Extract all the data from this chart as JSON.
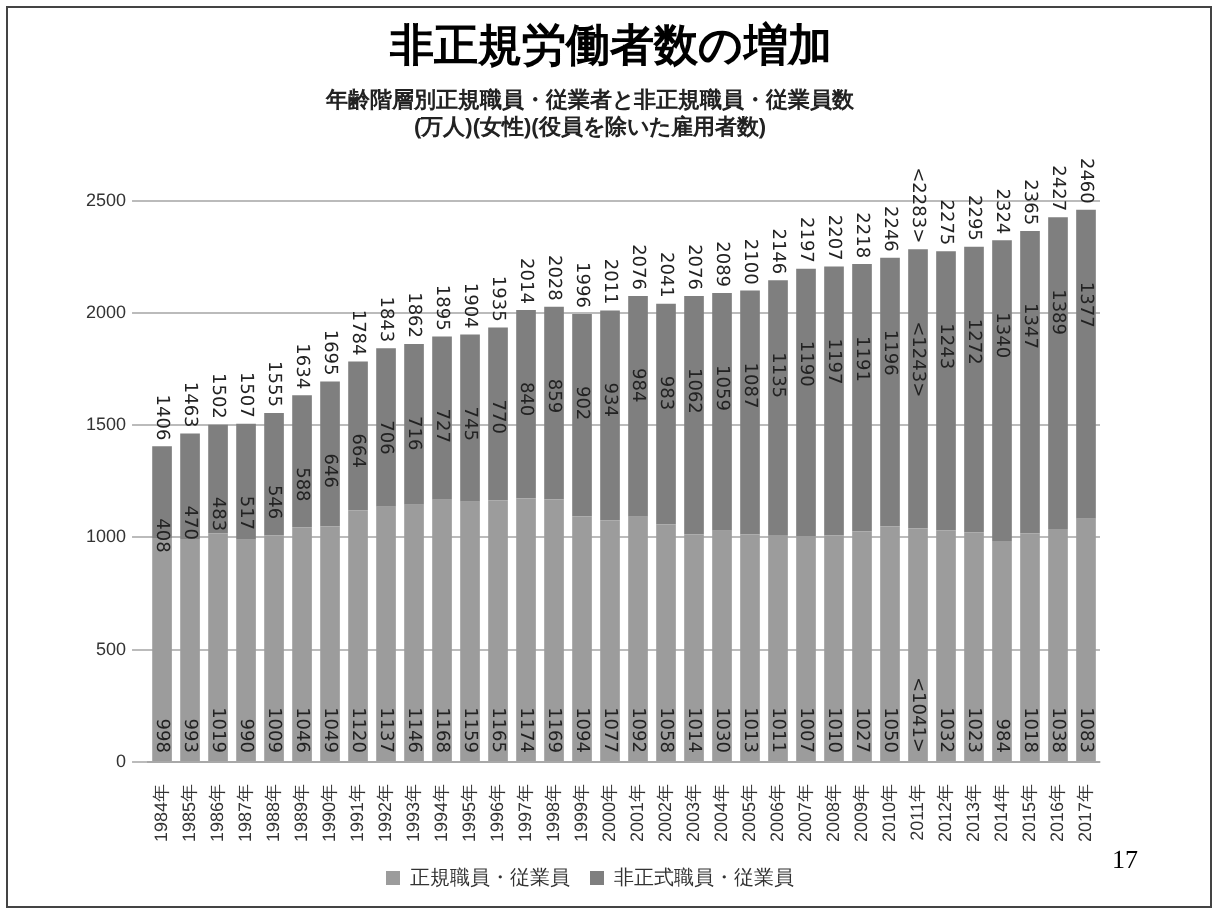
{
  "chart_data": {
    "type": "bar",
    "title": "非正規労働者数の増加",
    "subtitle": "年齢階層別正規職員・従業者と非正規職員・従業員数\n(万人)(女性)(役員を除いた雇用者数)",
    "categories": [
      "1984年",
      "1985年",
      "1986年",
      "1987年",
      "1988年",
      "1989年",
      "1990年",
      "1991年",
      "1992年",
      "1993年",
      "1994年",
      "1995年",
      "1996年",
      "1997年",
      "1998年",
      "1999年",
      "2000年",
      "2001年",
      "2002年",
      "2003年",
      "2004年",
      "2005年",
      "2006年",
      "2007年",
      "2008年",
      "2009年",
      "2010年",
      "2011年",
      "2012年",
      "2013年",
      "2014年",
      "2015年",
      "2016年",
      "2017年"
    ],
    "stacked": true,
    "series": [
      {
        "name": "正規職員・従業員",
        "color": "#9c9c9c",
        "values": [
          998,
          993,
          1019,
          990,
          1009,
          1046,
          1049,
          1120,
          1137,
          1146,
          1168,
          1159,
          1165,
          1174,
          1169,
          1094,
          1077,
          1092,
          1058,
          1014,
          1030,
          1013,
          1011,
          1007,
          1010,
          1027,
          1050,
          1041,
          1032,
          1023,
          984,
          1018,
          1038,
          1083
        ],
        "value_labels": [
          "998",
          "993",
          "1019",
          "990",
          "1009",
          "1046",
          "1049",
          "1120",
          "1137",
          "1146",
          "1168",
          "1159",
          "1165",
          "1174",
          "1169",
          "1094",
          "1077",
          "1092",
          "1058",
          "1014",
          "1030",
          "1013",
          "1011",
          "1007",
          "1010",
          "1027",
          "1050",
          "<1041>",
          "1032",
          "1023",
          "984",
          "1018",
          "1038",
          "1083"
        ]
      },
      {
        "name": "非正式職員・従業員",
        "color": "#7f7f7f",
        "values": [
          408,
          470,
          483,
          517,
          546,
          588,
          646,
          664,
          706,
          716,
          727,
          745,
          770,
          840,
          859,
          902,
          934,
          984,
          983,
          1062,
          1059,
          1087,
          1135,
          1190,
          1197,
          1191,
          1196,
          1243,
          1243,
          1272,
          1340,
          1347,
          1389,
          1377
        ],
        "value_labels": [
          "408",
          "470",
          "483",
          "517",
          "546",
          "588",
          "646",
          "664",
          "706",
          "716",
          "727",
          "745",
          "770",
          "840",
          "859",
          "902",
          "934",
          "984",
          "983",
          "1062",
          "1059",
          "1087",
          "1135",
          "1190",
          "1197",
          "1191",
          "1196",
          "<1243>",
          "1243",
          "1272",
          "1340",
          "1347",
          "1389",
          "1377"
        ]
      }
    ],
    "totals": [
      "1406",
      "1463",
      "1502",
      "1507",
      "1555",
      "1634",
      "1695",
      "1784",
      "1843",
      "1862",
      "1895",
      "1904",
      "1935",
      "2014",
      "2028",
      "1996",
      "2011",
      "2076",
      "2041",
      "2076",
      "2089",
      "2100",
      "2146",
      "2197",
      "2207",
      "2218",
      "2246",
      "<2283>",
      "2275",
      "2295",
      "2324",
      "2365",
      "2427",
      "2460"
    ],
    "ylim": [
      0,
      2500
    ],
    "yticks": [
      0,
      500,
      1000,
      1500,
      2000,
      2500
    ],
    "grid": "y",
    "legend": "bottom",
    "annotations": [
      "17"
    ]
  }
}
